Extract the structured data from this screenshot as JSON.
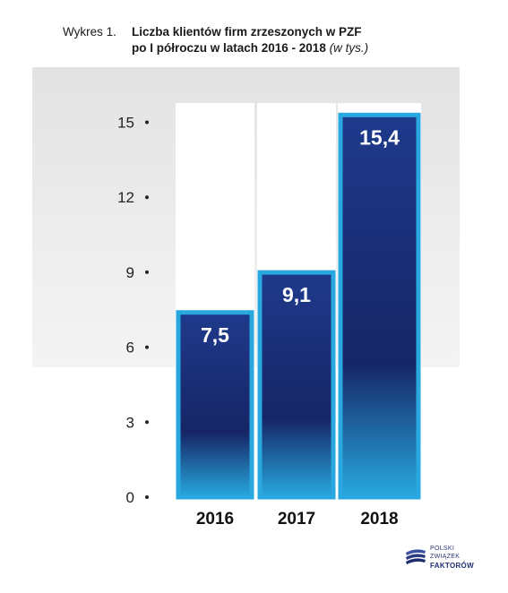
{
  "header": {
    "prefix": "Wykres 1.",
    "title_line1": "Liczba klientów firm zrzeszonych w PZF",
    "title_line2": "po I półroczu w latach 2016 - 2018",
    "unit": "(w tys.)"
  },
  "chart_data": {
    "type": "bar",
    "categories": [
      "2016",
      "2017",
      "2018"
    ],
    "values": [
      7.5,
      9.1,
      15.4
    ],
    "data_labels": [
      "7,5",
      "9,1",
      "15,4"
    ],
    "yticks": [
      "0",
      "3",
      "6",
      "9",
      "12",
      "15"
    ],
    "ylim": [
      0,
      15.4
    ],
    "grid": false,
    "colors": {
      "bar_top": "#1f3a8c",
      "bar_mid": "#162566",
      "bar_bottom": "#27a9df",
      "bar_border": "#29a8df",
      "panel_bg": "#e6e6e6",
      "column_bg": "#ffffff"
    }
  },
  "logo": {
    "line1": "POLSKI",
    "line2": "ZWIĄZEK",
    "line3": "FAKTORÓW"
  }
}
